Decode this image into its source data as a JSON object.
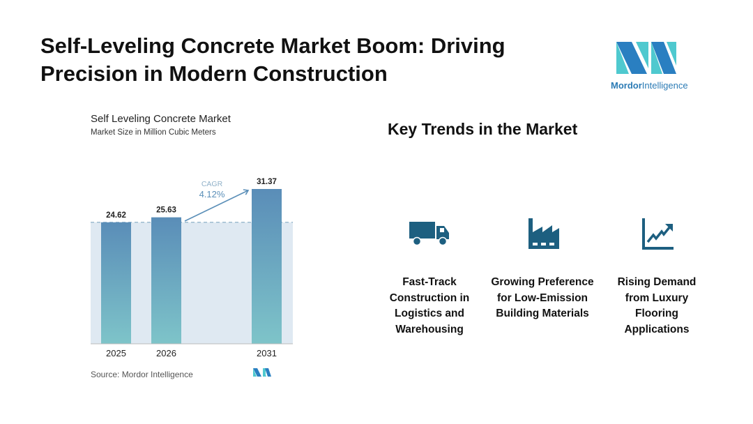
{
  "header": {
    "title": "Self-Leveling Concrete Market Boom: Driving Precision in Modern Construction"
  },
  "logo": {
    "name_bold": "Mordor",
    "name_rest": "Intelligence",
    "colors": [
      "#2a7fc1",
      "#4fc9cf"
    ]
  },
  "chart_data": {
    "type": "bar",
    "title": "Self Leveling Concrete Market",
    "subtitle": "Market Size in Million Cubic Meters",
    "categories": [
      "2025",
      "2026",
      "2031"
    ],
    "values": [
      24.62,
      25.63,
      31.37
    ],
    "value_labels": [
      "24.62",
      "25.63",
      "31.37"
    ],
    "ylim": [
      0,
      31.37
    ],
    "grid": false,
    "annotation": {
      "label": "CAGR",
      "value": "4.12%"
    },
    "source": "Source: Mordor Intelligence",
    "colors": {
      "bar_top": "#5a8db8",
      "bar_bottom": "#7ec4c9",
      "background_band": "#dfe9f2",
      "annotation": "#5b8fb8"
    }
  },
  "trends": {
    "heading": "Key Trends in the Market",
    "icon_color": "#1d5f80",
    "items": [
      {
        "icon": "truck-icon",
        "label": "Fast-Track Construction in Logistics and Warehousing"
      },
      {
        "icon": "factory-icon",
        "label": "Growing Preference for Low-Emission Building Materials"
      },
      {
        "icon": "rising-chart-icon",
        "label": "Rising Demand from Luxury Flooring Applications"
      }
    ]
  }
}
